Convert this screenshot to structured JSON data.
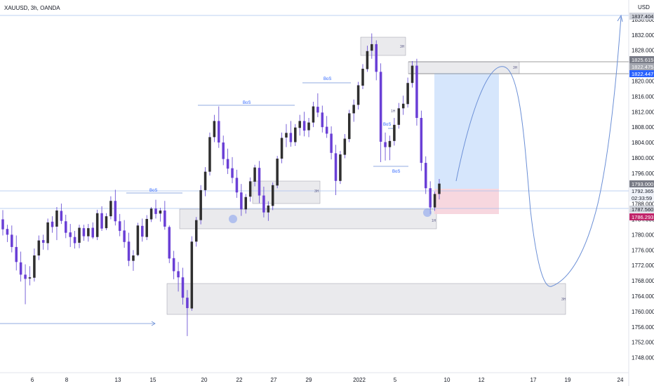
{
  "header": {
    "symbol": "XAUUSD, 3h, OANDA"
  },
  "axis": {
    "currency": "USD"
  },
  "chart_data": {
    "type": "candlestick",
    "symbol": "XAUUSD",
    "timeframe": "3h",
    "broker": "OANDA",
    "ylim": [
      1745,
      1840
    ],
    "y_ticks": [
      1748,
      1752,
      1756,
      1760,
      1764,
      1768,
      1772,
      1776,
      1780,
      1784,
      1788,
      1792,
      1796,
      1800,
      1804,
      1808,
      1812,
      1816,
      1820,
      1824,
      1828,
      1832,
      1836
    ],
    "y_tick_labels": [
      "1748.000",
      "1752.000",
      "1756.000",
      "1760.000",
      "1764.000",
      "1768.000",
      "1772.000",
      "1776.000",
      "1780.000",
      "1784.000",
      "1788.000",
      "1792.000",
      "1796.000",
      "1800.000",
      "1804.000",
      "1808.000",
      "1812.000",
      "1816.000",
      "1820.000",
      "1824.000",
      "1828.000",
      "1832.000",
      "1836.000"
    ],
    "x_tick_labels": [
      "6",
      "8",
      "13",
      "15",
      "20",
      "22",
      "27",
      "29",
      "2022",
      "5",
      "10",
      "12",
      "17",
      "19",
      "24"
    ],
    "candles": [
      [
        "1784.0",
        "1786.4",
        "1779.8",
        "1781.4"
      ],
      [
        "1781.5",
        "1782.6",
        "1778.1",
        "1780.0"
      ],
      [
        "1780.0",
        "1782.4",
        "1775.4",
        "1776.8"
      ],
      [
        "1776.8",
        "1779.8",
        "1770.7",
        "1772.9"
      ],
      [
        "1772.8",
        "1775.6",
        "1767.8",
        "1769.6"
      ],
      [
        "1769.6",
        "1772.3",
        "1761.9",
        "1768.5"
      ],
      [
        "1768.6",
        "1771.8",
        "1766.8",
        "1768.9"
      ],
      [
        "1768.8",
        "1776.4",
        "1767.8",
        "1774.6"
      ],
      [
        "1774.6",
        "1779.8",
        "1773.4",
        "1778.5"
      ],
      [
        "1778.6",
        "1780.0",
        "1776.1",
        "1777.9"
      ],
      [
        "1777.8",
        "1784.2",
        "1776.0",
        "1783.2"
      ],
      [
        "1783.4",
        "1784.8",
        "1780.5",
        "1782.0"
      ],
      [
        "1782.1",
        "1787.2",
        "1778.6",
        "1786.3"
      ],
      [
        "1786.2",
        "1788.1",
        "1782.8",
        "1783.6"
      ],
      [
        "1783.5",
        "1785.2",
        "1779.1",
        "1780.5"
      ],
      [
        "1780.6",
        "1782.8",
        "1776.8",
        "1779.4"
      ],
      [
        "1779.4",
        "1781.0",
        "1776.4",
        "1777.8"
      ],
      [
        "1777.9",
        "1782.6",
        "1776.5",
        "1781.8"
      ],
      [
        "1781.7",
        "1782.6",
        "1778.4",
        "1779.6"
      ],
      [
        "1779.6",
        "1782.8",
        "1778.2",
        "1781.7"
      ],
      [
        "1781.8",
        "1783.2",
        "1778.9",
        "1779.3"
      ],
      [
        "1779.4",
        "1786.5",
        "1778.6",
        "1785.6"
      ],
      [
        "1785.6",
        "1787.4",
        "1781.0",
        "1781.6"
      ],
      [
        "1781.7",
        "1785.6",
        "1781.2",
        "1784.8"
      ],
      [
        "1784.8",
        "1790.0",
        "1784.0",
        "1788.8"
      ],
      [
        "1788.8",
        "1791.7",
        "1782.4",
        "1783.5"
      ],
      [
        "1783.5",
        "1785.4",
        "1779.6",
        "1781.0"
      ],
      [
        "1781.1",
        "1783.8",
        "1776.6",
        "1778.1"
      ],
      [
        "1778.2",
        "1780.5",
        "1771.8",
        "1773.2"
      ],
      [
        "1773.2",
        "1776.0",
        "1770.6",
        "1774.6"
      ],
      [
        "1774.7",
        "1783.1",
        "1774.4",
        "1782.4"
      ],
      [
        "1782.3",
        "1784.2",
        "1778.2",
        "1779.5"
      ],
      [
        "1779.4",
        "1785.1",
        "1778.6",
        "1784.1"
      ],
      [
        "1784.0",
        "1787.2",
        "1783.3",
        "1786.8"
      ],
      [
        "1786.8",
        "1789.1",
        "1784.2",
        "1785.4"
      ],
      [
        "1785.5",
        "1787.0",
        "1783.4",
        "1786.3"
      ],
      [
        "1786.3",
        "1788.8",
        "1781.3",
        "1782.1"
      ],
      [
        "1782.0",
        "1782.4",
        "1772.6",
        "1773.8"
      ],
      [
        "1773.9",
        "1775.8",
        "1768.4",
        "1770.5"
      ],
      [
        "1770.5",
        "1772.9",
        "1765.2",
        "1768.9"
      ],
      [
        "1768.9",
        "1771.4",
        "1761.8",
        "1763.6"
      ],
      [
        "1763.6",
        "1765.6",
        "1753.6",
        "1760.9"
      ],
      [
        "1760.8",
        "1779.6",
        "1760.2",
        "1778.2"
      ],
      [
        "1778.2",
        "1784.6",
        "1776.9",
        "1783.8"
      ],
      [
        "1783.8",
        "1792.9",
        "1782.7",
        "1791.6"
      ],
      [
        "1791.6",
        "1797.6",
        "1790.0",
        "1796.4"
      ],
      [
        "1796.4",
        "1806.6",
        "1795.4",
        "1805.4"
      ],
      [
        "1805.4",
        "1811.2",
        "1804.1",
        "1809.6"
      ],
      [
        "1809.6",
        "1813.4",
        "1802.6",
        "1804.0"
      ],
      [
        "1804.0",
        "1805.8",
        "1798.1",
        "1799.7"
      ],
      [
        "1799.7",
        "1802.4",
        "1795.8",
        "1797.2"
      ],
      [
        "1797.3",
        "1800.2",
        "1793.4",
        "1794.8"
      ],
      [
        "1794.8",
        "1796.9",
        "1789.6",
        "1791.0"
      ],
      [
        "1791.0",
        "1793.2",
        "1784.9",
        "1786.6"
      ],
      [
        "1786.6",
        "1790.6",
        "1785.5",
        "1789.8"
      ],
      [
        "1789.9",
        "1794.9",
        "1788.6",
        "1793.9"
      ],
      [
        "1793.8",
        "1798.2",
        "1792.6",
        "1797.5"
      ],
      [
        "1797.4",
        "1799.2",
        "1788.2",
        "1790.2"
      ],
      [
        "1790.2",
        "1792.5",
        "1784.5",
        "1785.8"
      ],
      [
        "1785.8",
        "1788.7",
        "1783.6",
        "1787.6"
      ],
      [
        "1787.5",
        "1793.6",
        "1786.4",
        "1792.9"
      ],
      [
        "1792.8",
        "1800.5",
        "1792.1",
        "1799.8"
      ],
      [
        "1799.8",
        "1806.6",
        "1798.6",
        "1805.2"
      ],
      [
        "1805.3",
        "1808.8",
        "1802.8",
        "1806.5"
      ],
      [
        "1806.5",
        "1809.6",
        "1802.9",
        "1804.1"
      ],
      [
        "1804.1",
        "1808.8",
        "1803.1",
        "1807.9"
      ],
      [
        "1807.8",
        "1811.2",
        "1805.8",
        "1809.6"
      ],
      [
        "1809.6",
        "1812.0",
        "1805.6",
        "1807.1"
      ],
      [
        "1807.2",
        "1810.4",
        "1805.4",
        "1809.2"
      ],
      [
        "1809.2",
        "1814.6",
        "1808.0",
        "1813.4"
      ],
      [
        "1813.3",
        "1816.8",
        "1810.6",
        "1811.8"
      ],
      [
        "1811.8",
        "1813.6",
        "1806.6",
        "1808.0"
      ],
      [
        "1808.1",
        "1810.9",
        "1805.2",
        "1806.3"
      ],
      [
        "1806.3",
        "1808.2",
        "1799.6",
        "1801.3"
      ],
      [
        "1801.2",
        "1803.4",
        "1790.3",
        "1794.0"
      ],
      [
        "1794.0",
        "1801.8",
        "1793.2",
        "1800.9"
      ],
      [
        "1800.8",
        "1806.2",
        "1799.9",
        "1805.0"
      ],
      [
        "1804.9",
        "1812.5",
        "1804.1",
        "1811.6"
      ],
      [
        "1811.6",
        "1815.2",
        "1809.4",
        "1813.8"
      ],
      [
        "1813.8",
        "1819.8",
        "1812.6",
        "1818.9"
      ],
      [
        "1818.8",
        "1824.4",
        "1817.9",
        "1823.2"
      ],
      [
        "1823.1",
        "1829.2",
        "1822.4",
        "1827.8"
      ],
      [
        "1827.9",
        "1832.4",
        "1825.8",
        "1829.6"
      ],
      [
        "1829.6",
        "1830.6",
        "1820.2",
        "1822.4"
      ],
      [
        "1822.4",
        "1824.6",
        "1798.9",
        "1804.2"
      ],
      [
        "1804.1",
        "1806.6",
        "1799.3",
        "1802.8"
      ],
      [
        "1802.8",
        "1805.8",
        "1799.4",
        "1804.4"
      ],
      [
        "1804.4",
        "1810.4",
        "1803.2",
        "1808.6"
      ],
      [
        "1808.6",
        "1814.3",
        "1807.6",
        "1812.9"
      ],
      [
        "1812.9",
        "1816.2",
        "1811.2",
        "1814.1"
      ],
      [
        "1814.0",
        "1820.9",
        "1813.1",
        "1819.5"
      ],
      [
        "1819.5",
        "1825.2",
        "1818.3",
        "1824.0"
      ],
      [
        "1824.0",
        "1825.8",
        "1808.4",
        "1810.4"
      ],
      [
        "1810.4",
        "1812.3",
        "1796.6",
        "1798.7"
      ],
      [
        "1798.7",
        "1800.4",
        "1790.6",
        "1792.1"
      ],
      [
        "1792.1",
        "1793.9",
        "1785.4",
        "1787.1"
      ],
      [
        "1787.1",
        "1791.2",
        "1786.2",
        "1790.6"
      ],
      [
        "1790.6",
        "1794.5",
        "1789.2",
        "1793.3"
      ]
    ]
  },
  "annotations": {
    "bos_labels": [
      "BoS",
      "BoS",
      "BoS",
      "BoS",
      "BoS"
    ],
    "zone_labels": [
      "1H",
      "3H",
      "3H",
      "1H",
      "3H",
      "3H"
    ]
  },
  "price_badges": {
    "top": "1837.404",
    "upper_a": "1825.615",
    "upper_b": "1822.475",
    "entry_target": "1822.447",
    "last": "1793.000",
    "current": "1792.365",
    "countdown": "02:33:59",
    "level_mid": "1787.560",
    "stop": "1786.293"
  },
  "colors": {
    "bull": "#2f2f2f",
    "bear": "#6a3fd6",
    "wick": "#5b3fd0",
    "zone": "#d6d6dc",
    "target_zone": "#cfe2fb",
    "stop_zone": "#f6d3dc",
    "line": "#6b8fd6",
    "badge_blue": "#2962ff",
    "badge_pink": "#c0246a",
    "badge_gray": "#787b86"
  }
}
